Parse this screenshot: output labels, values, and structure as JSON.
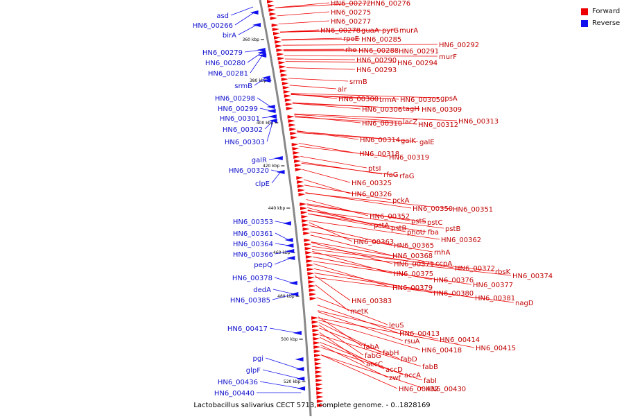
{
  "legend": {
    "forward_label": "Forward",
    "reverse_label": "Reverse",
    "forward_color": "#ee0000",
    "reverse_color": "#1010ee"
  },
  "caption": "Lactobacillus salivarius CECT 5713, complete genome. - 0..1828169",
  "ticks": [
    "360 kbp",
    "380 kbp",
    "400 kbp",
    "420 kbp",
    "440 kbp",
    "460 kbp",
    "480 kbp",
    "500 kbp",
    "520 kbp"
  ],
  "forward_labels": [
    "HN6_00272",
    "HN6_00276",
    "HN6_00275",
    "HN6_00277",
    "HN6_00278",
    "guaA",
    "pyrG",
    "murA",
    "rpoE",
    "HN6_00285",
    "HN6_00292",
    "rho",
    "HN6_00288",
    "HN6_00291",
    "murF",
    "HN6_00290",
    "HN6_00294",
    "HN6_00293",
    "srmB",
    "alr",
    "HN6_00300",
    "trmA",
    "HN6_00305",
    "gpsA",
    "HN6_00306",
    "tagH",
    "HN6_00309",
    "HN6_00313",
    "HN6_00310",
    "lacZ",
    "HN6_00312",
    "HN6_00314",
    "galK",
    "galE",
    "HN6_00318",
    "HN6_00319",
    "ptsI",
    "rfaG",
    "rfaG",
    "HN6_00325",
    "HN6_00326",
    "pckA",
    "HN6_00350",
    "HN6_00351",
    "HN6_00352",
    "pstS",
    "pstC",
    "pstA",
    "pstB",
    "pstB",
    "phoU",
    "fba",
    "HN6_00363",
    "HN6_00362",
    "HN6_00365",
    "rnhA",
    "HN6_00368",
    "HN6_00371",
    "ccpA",
    "HN6_00372",
    "rbsK",
    "HN6_00374",
    "HN6_00375",
    "HN6_00376",
    "HN6_00377",
    "HN6_00379",
    "HN6_00380",
    "HN6_00381",
    "HN6_00383",
    "nagD",
    "metK",
    "leuS",
    "HN6_00413",
    "rsuA",
    "HN6_00414",
    "fabA",
    "HN6_00418",
    "HN6_00415",
    "fabG",
    "fabH",
    "fabD",
    "accC",
    "fabB",
    "accD",
    "accA",
    "zwf",
    "fabI",
    "HN6_00432",
    "HN6_00430"
  ],
  "reverse_labels": [
    "asd",
    "HN6_00266",
    "birA",
    "HN6_00279",
    "HN6_00280",
    "HN6_00281",
    "srmB",
    "HN6_00298",
    "HN6_00299",
    "HN6_00301",
    "HN6_00302",
    "HN6_00303",
    "galR",
    "HN6_00320",
    "clpE",
    "HN6_00353",
    "HN6_00361",
    "HN6_00364",
    "HN6_00366",
    "pepQ",
    "HN6_00378",
    "dedA",
    "HN6_00385",
    "HN6_00417",
    "pgi",
    "glpF",
    "HN6_00436",
    "HN6_00440"
  ]
}
